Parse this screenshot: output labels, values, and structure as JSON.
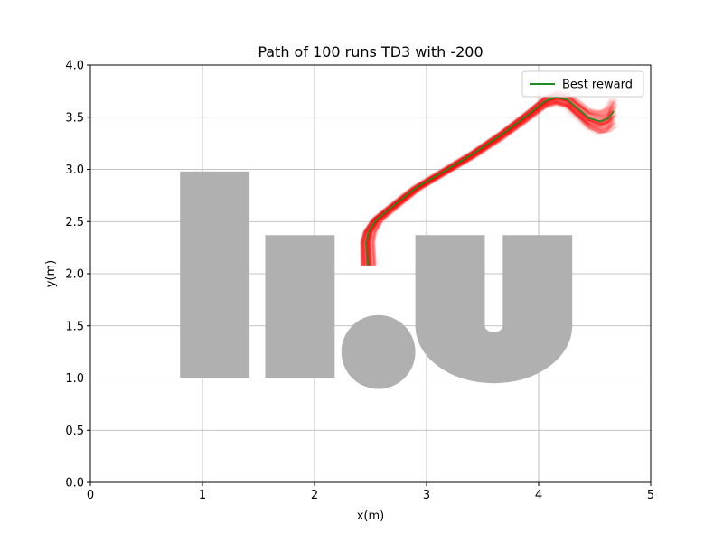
{
  "chart_data": {
    "type": "line",
    "title": "Path of 100 runs TD3 with -200",
    "xlabel": "x(m)",
    "ylabel": "y(m)",
    "xlim": [
      0,
      5
    ],
    "ylim": [
      0,
      4
    ],
    "xticks": [
      0,
      1,
      2,
      3,
      4,
      5
    ],
    "yticks": [
      0.0,
      0.5,
      1.0,
      1.5,
      2.0,
      2.5,
      3.0,
      3.5,
      4.0
    ],
    "xtick_labels": [
      "0",
      "1",
      "2",
      "3",
      "4",
      "5"
    ],
    "ytick_labels": [
      "0.0",
      "0.5",
      "1.0",
      "1.5",
      "2.0",
      "2.5",
      "3.0",
      "3.5",
      "4.0"
    ],
    "grid": true,
    "legend": {
      "position": "top-right",
      "entries": [
        {
          "label": "Best reward",
          "color": "#228B22"
        }
      ]
    },
    "colors": {
      "obstacle": "#b0b0b0",
      "runs": "#ff0000",
      "best": "#228B22"
    },
    "obstacles": [
      {
        "name": "bar-1",
        "shape": "rect",
        "x0": 0.8,
        "x1": 1.42,
        "y0": 1.0,
        "y1": 2.98
      },
      {
        "name": "bar-2",
        "shape": "rect",
        "x0": 1.56,
        "x1": 2.18,
        "y0": 1.0,
        "y1": 2.37
      },
      {
        "name": "dot",
        "shape": "circle",
        "cx": 2.57,
        "cy": 1.25,
        "r": 0.33
      },
      {
        "name": "u-shape",
        "shape": "u",
        "x0": 2.9,
        "x1": 4.3,
        "inner_x0": 3.52,
        "inner_x1": 3.68,
        "y_top": 2.37,
        "y_arc": 1.5,
        "y_bottom": 0.95
      }
    ],
    "series": [
      {
        "name": "Best reward",
        "color": "#228B22",
        "x": [
          2.47,
          2.46,
          2.48,
          2.55,
          2.7,
          2.9,
          3.15,
          3.4,
          3.65,
          3.9,
          4.05,
          4.15,
          4.25,
          4.35,
          4.45,
          4.55,
          4.62,
          4.67
        ],
        "y": [
          2.08,
          2.3,
          2.4,
          2.52,
          2.65,
          2.82,
          2.98,
          3.14,
          3.32,
          3.52,
          3.65,
          3.69,
          3.67,
          3.58,
          3.49,
          3.46,
          3.49,
          3.56
        ]
      },
      {
        "name": "runs (100, semi-transparent)",
        "color": "#ff0000",
        "count": 100,
        "start_x_range": [
          2.42,
          2.55
        ],
        "start_y": 2.08,
        "end_x_range": [
          4.55,
          4.7
        ],
        "end_y_range": [
          3.32,
          3.68
        ]
      }
    ]
  }
}
